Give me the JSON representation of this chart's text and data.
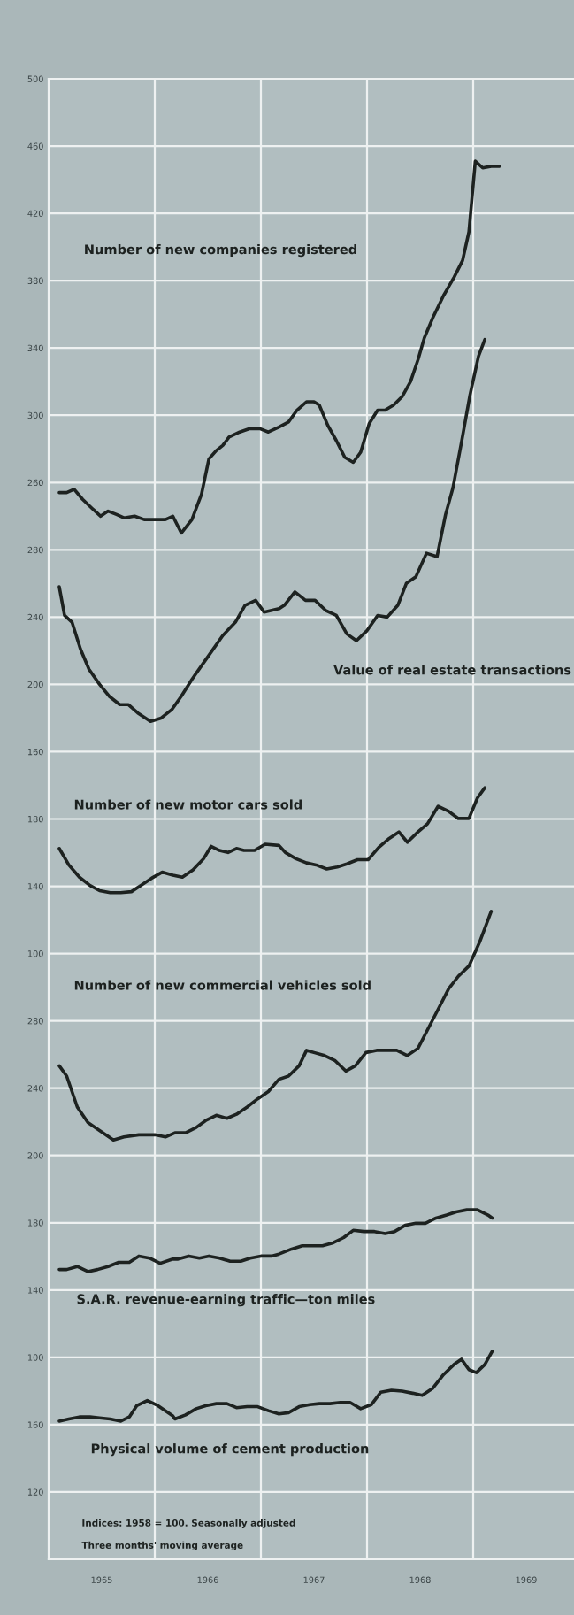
{
  "chart_data": [
    {
      "type": "line",
      "xlim": [
        1965,
        1969.95
      ],
      "xticks": [
        {
          "value": 1965.5,
          "label": "1965"
        },
        {
          "value": 1966,
          "label": null
        },
        {
          "value": 1966.5,
          "label": "1966"
        },
        {
          "value": 1967,
          "label": null
        },
        {
          "value": 1967.5,
          "label": "1967"
        },
        {
          "value": 1968,
          "label": null
        },
        {
          "value": 1968.5,
          "label": "1968"
        },
        {
          "value": 1969,
          "label": null
        },
        {
          "value": 1969.5,
          "label": "1969"
        }
      ],
      "ylim": [
        -380,
        500
      ],
      "yticks": [
        500,
        460,
        420,
        380,
        340,
        300,
        260
      ],
      "grid": true,
      "series": [
        {
          "name": "Number of new companies registered",
          "color": "#1d2220",
          "x": [
            1965.1,
            1965.17,
            1965.24,
            1965.32,
            1965.42,
            1965.49,
            1965.56,
            1965.64,
            1965.71,
            1965.81,
            1965.9,
            1966.0,
            1966.1,
            1966.17,
            1966.25,
            1966.35,
            1966.44,
            1966.51,
            1966.58,
            1966.64,
            1966.7,
            1966.8,
            1966.89,
            1966.99,
            1967.07,
            1967.17,
            1967.26,
            1967.34,
            1967.43,
            1967.5,
            1967.55,
            1967.63,
            1967.71,
            1967.79,
            1967.87,
            1967.94,
            1968.02,
            1968.1,
            1968.17,
            1968.25,
            1968.33,
            1968.41,
            1968.48,
            1968.54,
            1968.62,
            1968.72,
            1968.82,
            1968.9,
            1968.96,
            1969.02,
            1969.09,
            1969.17,
            1969.25
          ],
          "values": [
            254,
            254,
            256,
            250,
            244,
            240,
            243,
            241,
            239,
            240,
            238,
            238,
            238,
            240,
            230,
            238,
            253,
            274,
            279,
            282,
            287,
            290,
            292,
            292,
            290,
            293,
            296,
            303,
            308,
            308,
            306,
            294,
            285,
            275,
            272,
            278,
            295,
            303,
            303,
            306,
            311,
            320,
            333,
            346,
            358,
            371,
            382,
            392,
            409,
            451,
            447,
            448,
            448
          ]
        }
      ]
    },
    {
      "type": "line",
      "xlim": [
        1965,
        1969.95
      ],
      "ylim": [
        -320,
        560
      ],
      "yticks": [
        280,
        240,
        200,
        160
      ],
      "grid": "y",
      "tick_labels": "y",
      "series": [
        {
          "name": "Value of real estate transactions",
          "color": "#1d2220",
          "x": [
            1965.1,
            1965.15,
            1965.22,
            1965.3,
            1965.38,
            1965.48,
            1965.57,
            1965.67,
            1965.75,
            1965.84,
            1965.96,
            1966.06,
            1966.16,
            1966.25,
            1966.35,
            1966.45,
            1966.54,
            1966.64,
            1966.76,
            1966.85,
            1966.95,
            1967.03,
            1967.17,
            1967.22,
            1967.32,
            1967.42,
            1967.51,
            1967.61,
            1967.71,
            1967.81,
            1967.9,
            1968.0,
            1968.1,
            1968.19,
            1968.29,
            1968.37,
            1968.46,
            1968.56,
            1968.66,
            1968.74,
            1968.81,
            1968.89,
            1968.97,
            1969.05,
            1969.11
          ],
          "values": [
            258,
            241,
            237,
            221,
            209,
            200,
            193,
            188,
            188,
            183,
            178,
            180,
            185,
            193,
            203,
            212,
            220,
            229,
            237,
            247,
            250,
            243,
            245,
            247,
            255,
            250,
            250,
            244,
            241,
            230,
            226,
            232,
            241,
            240,
            247,
            260,
            264,
            278,
            276,
            301,
            317,
            344,
            372,
            395,
            405
          ]
        }
      ]
    },
    {
      "type": "line",
      "xlim": [
        1965,
        1969.95
      ],
      "ylim": [
        -260,
        620
      ],
      "yticks": [
        180,
        140,
        100
      ],
      "grid": "y",
      "tick_labels": "y",
      "series": [
        {
          "name": "Number of new motor cars sold",
          "color": "#1d2220",
          "x": [
            1965.1,
            1965.19,
            1965.29,
            1965.39,
            1965.48,
            1965.58,
            1965.68,
            1965.78,
            1965.87,
            1965.97,
            1966.07,
            1966.17,
            1966.26,
            1966.36,
            1966.46,
            1966.53,
            1966.61,
            1966.69,
            1966.77,
            1966.84,
            1966.94,
            1967.04,
            1967.17,
            1967.23,
            1967.33,
            1967.43,
            1967.52,
            1967.62,
            1967.72,
            1967.81,
            1967.91,
            1968.01,
            1968.11,
            1968.2,
            1968.3,
            1968.38,
            1968.48,
            1968.57,
            1968.67,
            1968.77,
            1968.86,
            1968.96,
            1969.04,
            1969.11
          ],
          "values": [
            162.5,
            152.7,
            145.4,
            140.5,
            137.4,
            136.2,
            136.2,
            136.8,
            140.5,
            144.8,
            148.4,
            146.6,
            145.4,
            149.7,
            156.4,
            163.7,
            161.3,
            160.1,
            162.5,
            161.3,
            161.3,
            165,
            164.3,
            160.1,
            156.4,
            153.9,
            152.7,
            150.3,
            151.5,
            153.3,
            155.8,
            155.8,
            163.1,
            168,
            172.3,
            166.2,
            172.3,
            177.2,
            187.6,
            184.5,
            180.3,
            180.3,
            192.5,
            198.6
          ]
        }
      ]
    },
    {
      "type": "line",
      "xlim": [
        1965,
        1969.95
      ],
      "ylim": [
        -40,
        840
      ],
      "yticks": [
        280,
        240,
        200
      ],
      "grid": "y",
      "tick_labels": "y",
      "series": [
        {
          "name": "Number of new commercial vehicles sold",
          "color": "#1d2220",
          "x": [
            1965.1,
            1965.17,
            1965.27,
            1965.37,
            1965.51,
            1965.61,
            1965.71,
            1965.85,
            1966.0,
            1966.1,
            1966.19,
            1966.29,
            1966.39,
            1966.48,
            1966.58,
            1966.68,
            1966.77,
            1966.87,
            1966.97,
            1967.07,
            1967.17,
            1967.26,
            1967.36,
            1967.43,
            1967.5,
            1967.6,
            1967.7,
            1967.8,
            1967.89,
            1967.99,
            1968.09,
            1968.18,
            1968.28,
            1968.38,
            1968.48,
            1968.57,
            1968.67,
            1968.77,
            1968.86,
            1968.96,
            1969.06,
            1969.17
          ],
          "values": [
            253.3,
            247.2,
            228.8,
            219.6,
            213.5,
            209.2,
            211,
            212.3,
            212.3,
            211,
            213.5,
            213.5,
            216.6,
            220.8,
            223.9,
            222.1,
            224.5,
            228.8,
            233.7,
            238,
            245.3,
            247.2,
            253.3,
            262.5,
            261.2,
            259.4,
            256.3,
            250.2,
            253.3,
            261.2,
            262.5,
            262.5,
            262.5,
            259.4,
            263.7,
            274.7,
            286.9,
            299.2,
            306.5,
            312.6,
            326.7,
            345.1
          ]
        }
      ]
    },
    {
      "type": "line",
      "xlim": [
        1965,
        1969.95
      ],
      "ylim": [
        -20,
        860
      ],
      "yticks": [
        180,
        140,
        100
      ],
      "grid": "y",
      "tick_labels": "y",
      "series": [
        {
          "name": "S.A.R. revenue-earning traffic—ton miles",
          "color": "#1d2220",
          "x": [
            1965.1,
            1965.17,
            1965.27,
            1965.37,
            1965.46,
            1965.56,
            1965.66,
            1965.76,
            1965.85,
            1965.95,
            1966.05,
            1966.17,
            1966.22,
            1966.32,
            1966.42,
            1966.51,
            1966.61,
            1966.71,
            1966.81,
            1966.9,
            1967.0,
            1967.1,
            1967.17,
            1967.29,
            1967.39,
            1967.49,
            1967.58,
            1967.68,
            1967.78,
            1967.87,
            1967.97,
            1968.07,
            1968.17,
            1968.26,
            1968.36,
            1968.46,
            1968.55,
            1968.65,
            1968.75,
            1968.84,
            1968.94,
            1969.04,
            1969.14,
            1969.18
          ],
          "values": [
            152.2,
            152.2,
            154,
            151,
            152.2,
            154,
            156.5,
            156.5,
            160.2,
            159,
            155.9,
            158.4,
            158.4,
            160.2,
            159,
            160.2,
            159,
            157.1,
            157.1,
            159,
            160.2,
            160.2,
            161.4,
            164.4,
            166.3,
            166.3,
            166.3,
            168.1,
            171.2,
            175.5,
            174.8,
            174.8,
            173.6,
            174.8,
            178.5,
            179.7,
            179.7,
            182.8,
            184.6,
            186.5,
            187.7,
            187.7,
            184.6,
            182.8
          ]
        }
      ]
    },
    {
      "type": "line",
      "xlim": [
        1965,
        1969.95
      ],
      "ylim": [
        80,
        960
      ],
      "yticks": [
        160,
        120
      ],
      "grid": "y",
      "tick_labels": "y",
      "annotations": [
        "Indices: 1958 = 100. Seasonally adjusted",
        "Three months' moving average"
      ],
      "series": [
        {
          "name": "Physical volume of cement production",
          "color": "#1d2220",
          "x": [
            1965.1,
            1965.19,
            1965.29,
            1965.39,
            1965.48,
            1965.58,
            1965.68,
            1965.76,
            1965.83,
            1965.93,
            1966.03,
            1966.17,
            1966.19,
            1966.29,
            1966.39,
            1966.48,
            1966.58,
            1966.68,
            1966.77,
            1966.87,
            1966.97,
            1967.07,
            1967.17,
            1967.26,
            1967.36,
            1967.46,
            1967.55,
            1967.65,
            1967.75,
            1967.84,
            1967.94,
            1968.04,
            1968.13,
            1968.23,
            1968.33,
            1968.43,
            1968.52,
            1968.62,
            1968.72,
            1968.82,
            1968.89,
            1968.96,
            1969.03,
            1969.11,
            1969.18
          ],
          "values": [
            162.1,
            163.4,
            164.6,
            164.6,
            164,
            163.4,
            162.1,
            164.6,
            171.3,
            174.4,
            171.3,
            165.2,
            163.4,
            165.8,
            169.5,
            171.3,
            172.5,
            172.5,
            170.1,
            170.7,
            170.7,
            168.3,
            166.4,
            167.1,
            170.7,
            171.9,
            172.5,
            172.5,
            173.2,
            173.2,
            169.5,
            171.9,
            179.3,
            180.5,
            179.9,
            178.7,
            177.4,
            181.7,
            189.7,
            195.8,
            198.9,
            192.7,
            190.9,
            195.8,
            203.7
          ]
        }
      ]
    }
  ]
}
